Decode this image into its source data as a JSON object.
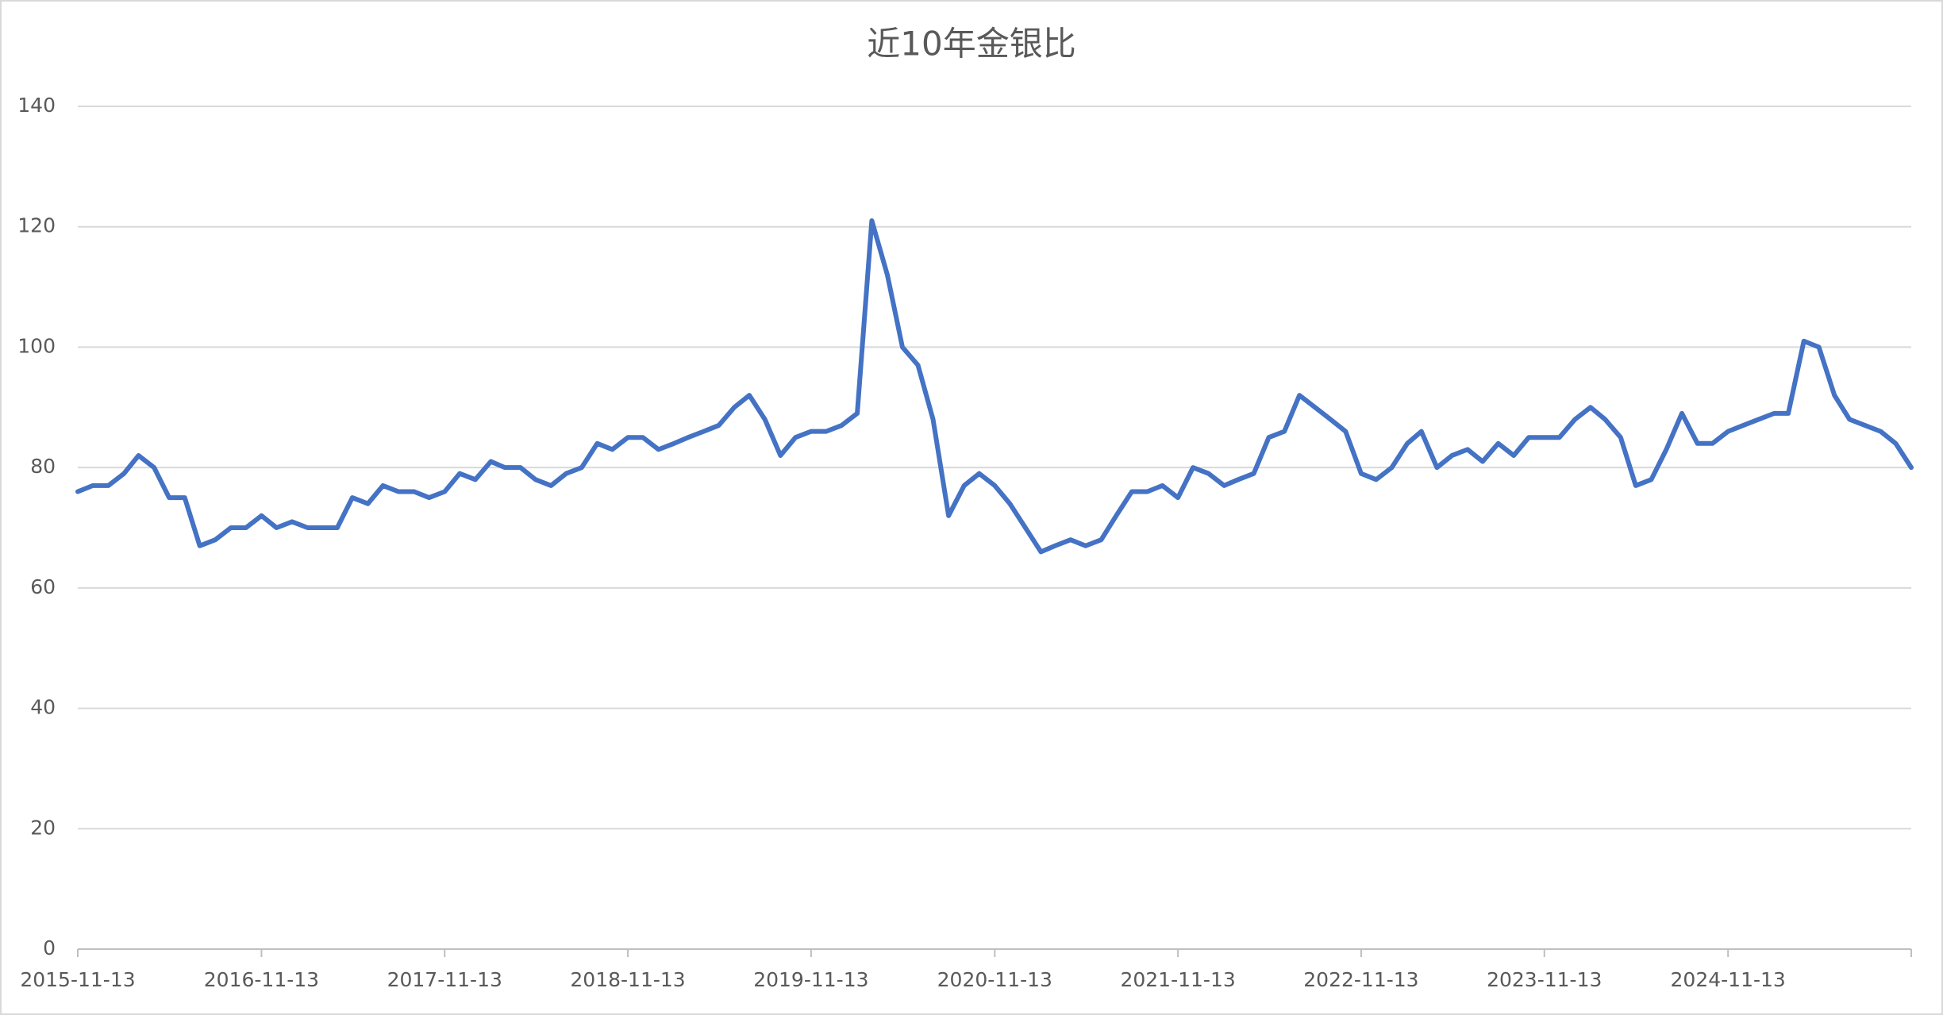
{
  "chart_data": {
    "type": "line",
    "title": "近10年金银比",
    "x": [
      "2015-11-13",
      "2015-12-13",
      "2016-01-13",
      "2016-02-13",
      "2016-03-13",
      "2016-04-13",
      "2016-05-13",
      "2016-06-13",
      "2016-07-13",
      "2016-08-13",
      "2016-09-13",
      "2016-10-13",
      "2016-11-13",
      "2016-12-13",
      "2017-01-13",
      "2017-02-13",
      "2017-03-13",
      "2017-04-13",
      "2017-05-13",
      "2017-06-13",
      "2017-07-13",
      "2017-08-13",
      "2017-09-13",
      "2017-10-13",
      "2017-11-13",
      "2017-12-13",
      "2018-01-13",
      "2018-02-13",
      "2018-03-13",
      "2018-04-13",
      "2018-05-13",
      "2018-06-13",
      "2018-07-13",
      "2018-08-13",
      "2018-09-13",
      "2018-10-13",
      "2018-11-13",
      "2018-12-13",
      "2019-01-13",
      "2019-02-13",
      "2019-03-13",
      "2019-04-13",
      "2019-05-13",
      "2019-06-13",
      "2019-07-13",
      "2019-08-13",
      "2019-09-13",
      "2019-10-13",
      "2019-11-13",
      "2019-12-13",
      "2020-01-13",
      "2020-02-13",
      "2020-03-13",
      "2020-04-13",
      "2020-05-13",
      "2020-06-13",
      "2020-07-13",
      "2020-08-13",
      "2020-09-13",
      "2020-10-13",
      "2020-11-13",
      "2020-12-13",
      "2021-01-13",
      "2021-02-13",
      "2021-03-13",
      "2021-04-13",
      "2021-05-13",
      "2021-06-13",
      "2021-07-13",
      "2021-08-13",
      "2021-09-13",
      "2021-10-13",
      "2021-11-13",
      "2021-12-13",
      "2022-01-13",
      "2022-02-13",
      "2022-03-13",
      "2022-04-13",
      "2022-05-13",
      "2022-06-13",
      "2022-07-13",
      "2022-08-13",
      "2022-09-13",
      "2022-10-13",
      "2022-11-13",
      "2022-12-13",
      "2023-01-13",
      "2023-02-13",
      "2023-03-13",
      "2023-04-13",
      "2023-05-13",
      "2023-06-13",
      "2023-07-13",
      "2023-08-13",
      "2023-09-13",
      "2023-10-13",
      "2023-11-13",
      "2023-12-13",
      "2024-01-13",
      "2024-02-13",
      "2024-03-13",
      "2024-04-13",
      "2024-05-13",
      "2024-06-13",
      "2024-07-13",
      "2024-08-13",
      "2024-09-13",
      "2024-10-13",
      "2024-11-13",
      "2024-12-13",
      "2025-01-13",
      "2025-02-13",
      "2025-03-13",
      "2025-04-13",
      "2025-05-13",
      "2025-06-13",
      "2025-07-13",
      "2025-08-13",
      "2025-09-13",
      "2025-10-13",
      "2025-11-13"
    ],
    "series": [
      {
        "color": "#4472c4",
        "values": [
          76,
          77,
          77,
          79,
          82,
          80,
          75,
          75,
          67,
          68,
          70,
          70,
          72,
          70,
          71,
          70,
          70,
          70,
          75,
          74,
          77,
          76,
          76,
          75,
          76,
          79,
          78,
          81,
          80,
          80,
          78,
          77,
          79,
          80,
          84,
          83,
          85,
          85,
          83,
          84,
          85,
          86,
          87,
          90,
          92,
          88,
          82,
          85,
          86,
          86,
          87,
          89,
          121,
          112,
          100,
          97,
          88,
          72,
          77,
          79,
          77,
          74,
          70,
          66,
          67,
          68,
          67,
          68,
          72,
          76,
          76,
          77,
          75,
          80,
          79,
          77,
          78,
          79,
          85,
          86,
          92,
          90,
          88,
          86,
          79,
          78,
          80,
          84,
          86,
          80,
          82,
          83,
          81,
          84,
          82,
          85,
          85,
          85,
          88,
          90,
          88,
          85,
          77,
          78,
          83,
          89,
          84,
          84,
          86,
          87,
          88,
          89,
          89,
          101,
          100,
          92,
          88,
          87,
          86,
          84,
          80
        ]
      }
    ],
    "xlim": [
      "2015-11-13",
      "2025-11-13"
    ],
    "xticks": [
      "2015-11-13",
      "2016-11-13",
      "2017-11-13",
      "2018-11-13",
      "2019-11-13",
      "2020-11-13",
      "2021-11-13",
      "2022-11-13",
      "2023-11-13",
      "2024-11-13"
    ],
    "ylim": [
      0,
      140
    ],
    "yticks": [
      0,
      20,
      40,
      60,
      80,
      100,
      120,
      140
    ],
    "grid": true
  }
}
